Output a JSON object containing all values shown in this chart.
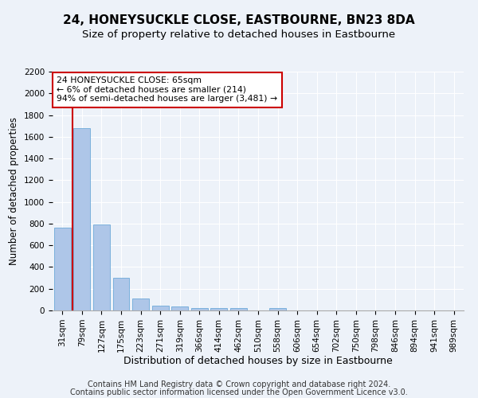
{
  "title": "24, HONEYSUCKLE CLOSE, EASTBOURNE, BN23 8DA",
  "subtitle": "Size of property relative to detached houses in Eastbourne",
  "xlabel": "Distribution of detached houses by size in Eastbourne",
  "ylabel": "Number of detached properties",
  "categories": [
    "31sqm",
    "79sqm",
    "127sqm",
    "175sqm",
    "223sqm",
    "271sqm",
    "319sqm",
    "366sqm",
    "414sqm",
    "462sqm",
    "510sqm",
    "558sqm",
    "606sqm",
    "654sqm",
    "702sqm",
    "750sqm",
    "798sqm",
    "846sqm",
    "894sqm",
    "941sqm",
    "989sqm"
  ],
  "values": [
    760,
    1680,
    790,
    300,
    110,
    45,
    35,
    25,
    25,
    20,
    0,
    20,
    0,
    0,
    0,
    0,
    0,
    0,
    0,
    0,
    0
  ],
  "bar_color": "#aec6e8",
  "bar_edge_color": "#5a9fd4",
  "annotation_box_text": "24 HONEYSUCKLE CLOSE: 65sqm\n← 6% of detached houses are smaller (214)\n94% of semi-detached houses are larger (3,481) →",
  "annotation_box_color": "#ffffff",
  "annotation_box_edge_color": "#cc0000",
  "vline_color": "#cc0000",
  "ylim": [
    0,
    2200
  ],
  "yticks": [
    0,
    200,
    400,
    600,
    800,
    1000,
    1200,
    1400,
    1600,
    1800,
    2000,
    2200
  ],
  "footer_line1": "Contains HM Land Registry data © Crown copyright and database right 2024.",
  "footer_line2": "Contains public sector information licensed under the Open Government Licence v3.0.",
  "bg_color": "#edf2f9",
  "plot_bg_color": "#edf2f9",
  "title_fontsize": 11,
  "subtitle_fontsize": 9.5,
  "ylabel_fontsize": 8.5,
  "xlabel_fontsize": 9,
  "tick_fontsize": 7.5,
  "footer_fontsize": 7
}
